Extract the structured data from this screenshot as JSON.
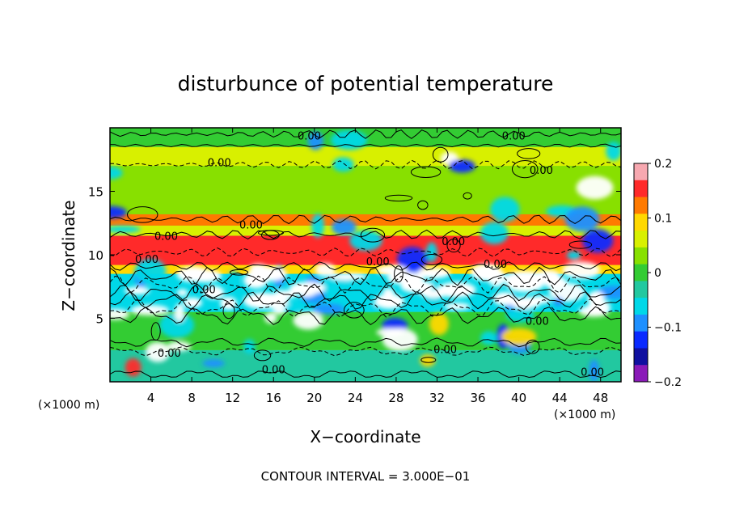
{
  "chart_data": {
    "type": "heatmap",
    "title": "disturbunce of potential temperature",
    "xlabel": "X−coordinate",
    "ylabel": "Z−coordinate",
    "x_unit": "(×1000 m)",
    "y_unit": "(×1000 m)",
    "footer": "CONTOUR INTERVAL = 3.000E−01",
    "xlim": [
      0,
      50
    ],
    "ylim": [
      0,
      20
    ],
    "x_ticks": [
      4,
      8,
      12,
      16,
      20,
      24,
      28,
      32,
      36,
      40,
      44,
      48
    ],
    "y_ticks": [
      5,
      10,
      15
    ],
    "contour_labels": [
      "0.00",
      "0.00",
      "0.00",
      "0.00",
      "0.00",
      "0.00",
      "0.00",
      "0.00",
      "0.00",
      "0.00",
      "0.00",
      "0.00",
      "0.00",
      "0.00",
      "0.00",
      "0.00"
    ],
    "colorbar": {
      "range": [
        -0.2,
        0.2
      ],
      "ticks": [
        "0.2",
        "0.1",
        "0",
        "−0.1",
        "−0.2"
      ],
      "tick_values": [
        0.2,
        0.1,
        0,
        -0.1,
        -0.2
      ],
      "colors": [
        "#f7a8b0",
        "#ff2a2a",
        "#ff7a00",
        "#ffd800",
        "#d8f000",
        "#88e000",
        "#33cc33",
        "#22c8a0",
        "#00d8e8",
        "#1e90ff",
        "#0a2aff",
        "#1010a0",
        "#8a1ab8"
      ]
    },
    "bands": [
      {
        "z": [
          0,
          2.5
        ],
        "value": -0.02
      },
      {
        "z": [
          2.5,
          5.5
        ],
        "value": 0.0
      },
      {
        "z": [
          5.5,
          8.5
        ],
        "value": -0.05
      },
      {
        "z": [
          8.5,
          9.2
        ],
        "value": 0.1
      },
      {
        "z": [
          9.2,
          11.5
        ],
        "value": 0.15
      },
      {
        "z": [
          11.5,
          12.3
        ],
        "value": 0.07
      },
      {
        "z": [
          12.3,
          13.2
        ],
        "value": 0.12
      },
      {
        "z": [
          13.2,
          17.0
        ],
        "value": 0.02
      },
      {
        "z": [
          17.0,
          18.5
        ],
        "value": 0.05
      },
      {
        "z": [
          18.5,
          20.0
        ],
        "value": 0.0
      }
    ]
  }
}
